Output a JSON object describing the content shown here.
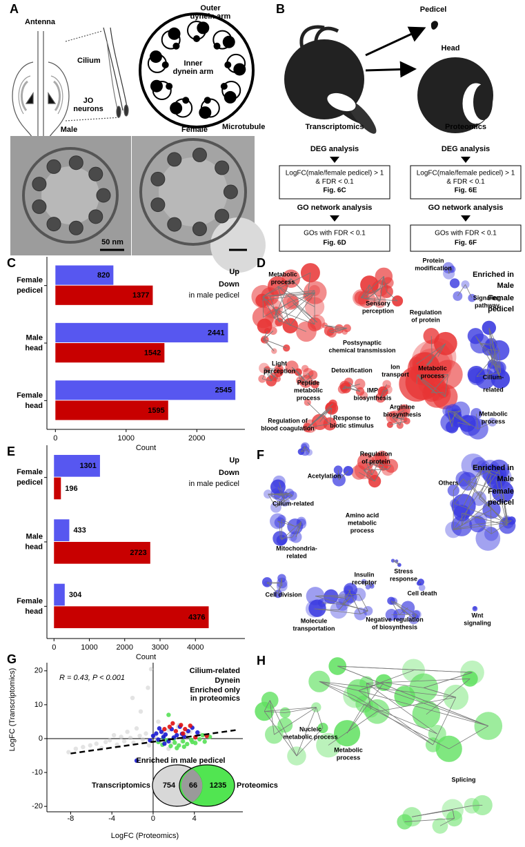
{
  "panel_a": {
    "letter": "A",
    "antenna": "Antenna",
    "cilium": "Cilium",
    "jo_neurons": [
      "JO",
      "neurons"
    ],
    "outer": [
      "Outer",
      "dynein arm"
    ],
    "inner": [
      "Inner",
      "dynein arm"
    ],
    "microtubule": "Microtubule",
    "male": "Male",
    "female": "Female",
    "scale": "50 nm"
  },
  "panel_b": {
    "letter": "B",
    "pedicel": "Pedicel",
    "head": "Head",
    "left": {
      "title": "Transcriptomics",
      "step1": "DEG analysis",
      "box1": [
        "LogFC(male/female pedicel) > 1",
        "& FDR < 0.1",
        "Fig. 6C"
      ],
      "step2": "GO network analysis",
      "box2": [
        "GOs with FDR < 0.1",
        "Fig. 6D"
      ]
    },
    "right": {
      "title": "Proteomics",
      "step1": "DEG analysis",
      "box1": [
        "LogFC(male/female pedicel) > 1",
        "& FDR < 0.1",
        "Fig. 6E"
      ],
      "step2": "GO network analysis",
      "box2": [
        "GOs with FDR < 0.1",
        "Fig. 6F"
      ]
    }
  },
  "panel_d": {
    "letter": "D",
    "legend": [
      "Enriched in",
      "Male",
      "Female",
      "pedicel"
    ],
    "labels": [
      [
        "Metabolic",
        "process"
      ],
      [
        "Protein",
        "modification"
      ],
      [
        "Signaling",
        "pathway"
      ],
      [
        "Sensory",
        "perception"
      ],
      [
        "Regulation",
        "of protein"
      ],
      [
        "Postsynaptic",
        "chemical transmission"
      ],
      [
        "Light",
        "perception"
      ],
      [
        "Peptide",
        "metabolic",
        "process"
      ],
      [
        "Detoxification"
      ],
      [
        "Ion",
        "transport"
      ],
      [
        "Metabolic",
        "process"
      ],
      [
        "Cilium-",
        "related"
      ],
      [
        "IMP",
        "biosynthesis"
      ],
      [
        "Regulation of",
        "blood coagulation"
      ],
      [
        "Response to",
        "biotic stimulus"
      ],
      [
        "Arginine",
        "biosynthesis"
      ],
      [
        "Metabolic",
        "process"
      ]
    ]
  },
  "panel_f": {
    "letter": "F",
    "legend": [
      "Enriched in",
      "Male",
      "Female",
      "pedicel"
    ],
    "labels": [
      [
        "Acetylation"
      ],
      [
        "Regulation",
        "of protein"
      ],
      [
        "Others"
      ],
      [
        "Cilium-related"
      ],
      [
        "Amino acid",
        "metabolic",
        "process"
      ],
      [
        "Mitochondria-",
        "related"
      ],
      [
        "Insulin",
        "receptor"
      ],
      [
        "Stress",
        "response"
      ],
      [
        "Cell division"
      ],
      [
        "Cell death"
      ],
      [
        "Molecule",
        "transportation"
      ],
      [
        "Negative regulation",
        "of biosynthesis"
      ],
      [
        "Wnt",
        "signaling"
      ]
    ]
  },
  "panel_h": {
    "letter": "H",
    "labels": [
      [
        "Nucleic",
        "metabolic process"
      ],
      [
        "Metabolic",
        "process"
      ],
      [
        "Splicing"
      ]
    ]
  },
  "chart_data": [
    {
      "type": "bar",
      "panel": "C",
      "orientation": "horizontal",
      "categories": [
        "Female pedicel",
        "Male head",
        "Female head"
      ],
      "series": [
        {
          "name": "Up",
          "color": "#5757f0",
          "values": [
            820,
            2441,
            2545
          ]
        },
        {
          "name": "Down",
          "color": "#c80000",
          "values": [
            1377,
            1542,
            1595
          ]
        }
      ],
      "legend_note": "in male pedicel",
      "xlabel": "Count",
      "xlim": [
        -120,
        2680
      ],
      "xticks": [
        0,
        1000,
        2000
      ]
    },
    {
      "type": "bar",
      "panel": "E",
      "orientation": "horizontal",
      "categories": [
        "Female pedicel",
        "Male head",
        "Female head"
      ],
      "series": [
        {
          "name": "Up",
          "color": "#5757f0",
          "values": [
            1301,
            433,
            304
          ]
        },
        {
          "name": "Down",
          "color": "#c80000",
          "values": [
            196,
            2723,
            4376
          ]
        }
      ],
      "legend_note": "in male pedicel",
      "xlabel": "Count",
      "xlim": [
        -200,
        5400
      ],
      "xticks": [
        0,
        1000,
        2000,
        3000,
        4000
      ]
    },
    {
      "type": "scatter",
      "panel": "G",
      "annotation": "R = 0.43, P < 0.001",
      "xlabel": "LogFC (Proteomics)",
      "ylabel": "LogFC (Transcriptomics)",
      "xlim": [
        -10.3,
        8.7
      ],
      "xticks": [
        -8,
        -4,
        0,
        4
      ],
      "ylim": [
        -21.6,
        22.4
      ],
      "yticks": [
        -20,
        -10,
        0,
        10,
        20
      ],
      "series": [
        {
          "color": "#cccccc",
          "x": [
            -8.2,
            -7.5,
            -6.8,
            -6.1,
            -5.5,
            -5,
            -4.6,
            -4.2,
            -3.8,
            -3.5,
            -3.1,
            -2.8,
            -2.5,
            -2.2,
            -1.9,
            -1.6,
            -1.3,
            -1,
            -0.7,
            -0.4,
            -0.2,
            0.3,
            0.6,
            0.9,
            1.2,
            1.5,
            1.8,
            2.1,
            2.4,
            2.8,
            3.2,
            3.6,
            4,
            4.5,
            -2,
            -1.2,
            0.5,
            1.5,
            -0.5,
            2.5
          ],
          "values": [
            -4,
            -3,
            -2.5,
            -2,
            -1.5,
            -2.8,
            -1,
            -0.5,
            1,
            -1.8,
            0.5,
            -0.8,
            2,
            0.2,
            -1.2,
            3,
            0.8,
            -0.3,
            1.5,
            -2,
            20.5,
            0.2,
            -1,
            1.8,
            -0.5,
            2.5,
            -1.5,
            0.6,
            3.5,
            -0.8,
            1.2,
            2,
            -0.5,
            1.5,
            12,
            8,
            5,
            -3,
            15,
            4
          ]
        },
        {
          "name": "Enriched only in proteomics",
          "color": "#55e055",
          "x": [
            0.5,
            0.9,
            1.3,
            1.7,
            2.1,
            2.5,
            2.9,
            3.3,
            3.7,
            4.1,
            4.5,
            5,
            5.5,
            1.5,
            2.3,
            3,
            3.8,
            1,
            2,
            4.8
          ],
          "values": [
            -1,
            -1.8,
            -0.5,
            -2.2,
            -1.2,
            -2,
            -0.8,
            -1.6,
            -0.4,
            -1.3,
            -0.2,
            -0.9,
            0.5,
            7,
            -2.8,
            -2.4,
            -1,
            0.2,
            -0.1,
            1
          ]
        },
        {
          "name": "Cilium-related",
          "color": "#1a1ad0",
          "x": [
            -0.3,
            0,
            0.3,
            0.5,
            0.8,
            1,
            1.2,
            1.5,
            1.8,
            2,
            2.3,
            2.6,
            3,
            3.4,
            3.8,
            4.3,
            1.1,
            0.6,
            -1.6,
            2.8
          ],
          "values": [
            -0.5,
            0.8,
            1.5,
            -0.3,
            2,
            0.5,
            1.2,
            -0.8,
            2.8,
            0.3,
            1,
            3.5,
            0.6,
            2.2,
            3.2,
            1.8,
            -1.5,
            3,
            -6.5,
            1.4
          ]
        },
        {
          "name": "Dynein",
          "color": "#e01010",
          "x": [
            1.1,
            1.6,
            2.2,
            2.7,
            3.1,
            3.6,
            4.1,
            5.2,
            1.9,
            2.9
          ],
          "values": [
            2.8,
            3.5,
            2.2,
            4,
            2.8,
            3.8,
            0.4,
            0.8,
            4.5,
            1.5
          ]
        }
      ],
      "legend_order": [
        2,
        3,
        1
      ],
      "trend": {
        "x": [
          -8,
          8
        ],
        "values": [
          -4.4,
          2.5
        ]
      },
      "venn": {
        "title": "Enriched in male pedicel",
        "left": "Transcriptomics",
        "left_only": 754,
        "both": 66,
        "right_only": 1235,
        "right": "Proteomics"
      }
    }
  ]
}
